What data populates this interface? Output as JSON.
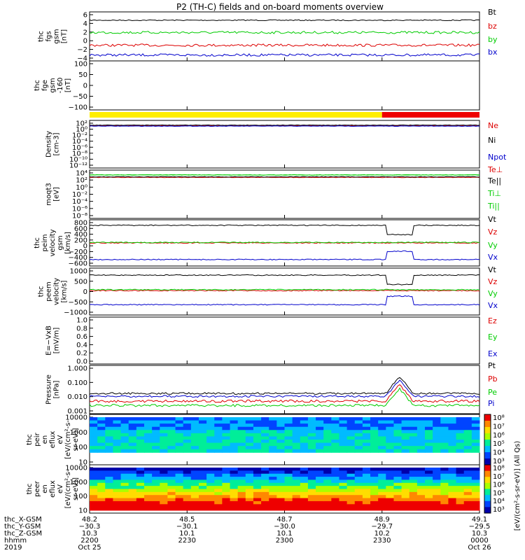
{
  "title": "P2 (TH-C) fields and on-board moments overview",
  "colors": {
    "black": "#000000",
    "red": "#dd0000",
    "green": "#00cc00",
    "blue": "#0000cc",
    "yellow": "#ffee00",
    "bar_red": "#ee0000"
  },
  "chart_data": [
    {
      "type": "line",
      "ylabel": [
        "thc",
        "fgs",
        "gsm",
        "[nT]"
      ],
      "yticks": [
        "6",
        "4",
        "2",
        "0",
        "−2",
        "−4"
      ],
      "series": [
        {
          "name": "Bt",
          "color": "#000000",
          "level": 3.6
        },
        {
          "name": "bz",
          "color": "#dd0000",
          "level": -0.3
        },
        {
          "name": "by",
          "color": "#00cc00",
          "level": 2.5
        },
        {
          "name": "bx",
          "color": "#0000cc",
          "level": -2.8
        }
      ]
    },
    {
      "type": "line",
      "ylabel": [
        "thc",
        "fge",
        "gsm",
        "-160",
        "[nT]"
      ],
      "yticks": [
        "100",
        "50",
        "0",
        "−50",
        "−100"
      ],
      "series": []
    },
    {
      "type": "bar",
      "name": "mode bar",
      "segments": [
        {
          "from": "2200",
          "to": "2330",
          "color": "#ffee00"
        },
        {
          "from": "2330",
          "to": "0000",
          "color": "#ee0000"
        }
      ]
    },
    {
      "type": "line",
      "ylabel": [
        "Density",
        "[cm-3]"
      ],
      "yticks": [
        "10²",
        "10⁰",
        "10⁻²",
        "10⁻⁴",
        "10⁻⁶",
        "10⁻⁸",
        "10⁻¹⁰",
        "10⁻¹²"
      ],
      "series": [
        {
          "name": "Ne",
          "color": "#dd0000"
        },
        {
          "name": "Ni",
          "color": "#000000"
        },
        {
          "name": "Npot",
          "color": "#0000cc"
        }
      ]
    },
    {
      "type": "line",
      "ylabel": [
        "moqt3",
        "[eV]"
      ],
      "yticks": [
        "10⁴",
        "10²",
        "10⁰",
        "10⁻²",
        "10⁻⁴",
        "10⁻⁶",
        "10⁻⁸"
      ],
      "series": [
        {
          "name": "Te⊥",
          "color": "#dd0000"
        },
        {
          "name": "Te||",
          "color": "#000000"
        },
        {
          "name": "Ti⊥",
          "color": "#00cc00"
        },
        {
          "name": "Ti||",
          "color": "#00cc00"
        }
      ]
    },
    {
      "type": "line",
      "ylabel": [
        "thc",
        "peim",
        "velocity",
        "gsm",
        "[km/s]"
      ],
      "yticks": [
        "800",
        "600",
        "400",
        "200",
        "0",
        "−200",
        "−400",
        "−600"
      ],
      "series": [
        {
          "name": "Vt",
          "color": "#000000"
        },
        {
          "name": "Vz",
          "color": "#dd0000"
        },
        {
          "name": "Vy",
          "color": "#00cc00"
        },
        {
          "name": "Vx",
          "color": "#0000cc"
        }
      ]
    },
    {
      "type": "line",
      "ylabel": [
        "thc",
        "peem",
        "velocity",
        "[km/s]"
      ],
      "yticks": [
        "1000",
        "500",
        "0",
        "−500",
        "−1000"
      ],
      "series": [
        {
          "name": "Vt",
          "color": "#000000"
        },
        {
          "name": "Vz",
          "color": "#dd0000"
        },
        {
          "name": "Vy",
          "color": "#00cc00"
        },
        {
          "name": "Vx",
          "color": "#0000cc"
        }
      ]
    },
    {
      "type": "line",
      "ylabel": [
        "E=−VxB",
        "[mV/m]"
      ],
      "yticks": [
        "1.0",
        "0.8",
        "0.6",
        "0.4",
        "0.2",
        "0.0"
      ],
      "series": [
        {
          "name": "Ez",
          "color": "#dd0000"
        },
        {
          "name": "Ey",
          "color": "#00cc00"
        },
        {
          "name": "Ex",
          "color": "#0000cc"
        }
      ]
    },
    {
      "type": "line",
      "ylabel": [
        "Pressure",
        "[nPa]"
      ],
      "yticks": [
        "1.000",
        "0.100",
        "0.010",
        "0.001"
      ],
      "series": [
        {
          "name": "Pt",
          "color": "#000000"
        },
        {
          "name": "Pb",
          "color": "#dd0000"
        },
        {
          "name": "Pe",
          "color": "#00cc00"
        },
        {
          "name": "Pi",
          "color": "#0000cc"
        }
      ]
    },
    {
      "type": "heatmap",
      "ylabel": [
        "thc",
        "peir",
        "en",
        "eflux",
        "eV",
        "[eV/(cm²-s-",
        "sr-eV)]"
      ],
      "yticks": [
        "10000",
        "1000",
        "100",
        "10"
      ],
      "colorbar": {
        "ticks": [
          "10⁸",
          "10⁷",
          "10⁶",
          "10⁵",
          "10⁴",
          "10³"
        ],
        "label": "[eV/(cm²-s-sr-eV)] (All Qs)"
      }
    },
    {
      "type": "heatmap",
      "ylabel": [
        "thc",
        "peer",
        "en",
        "eflux",
        "eV",
        "[eV/(cm²-s-",
        "sr-eV)]"
      ],
      "yticks": [
        "10000",
        "1000",
        "100",
        "10"
      ],
      "colorbar": {
        "ticks": [
          "10⁸",
          "10⁷",
          "10⁶",
          "10⁵",
          "10⁴",
          "10³"
        ]
      }
    }
  ],
  "xaxis": {
    "row_labels": [
      "thc_X-GSM",
      "thc_Y-GSM",
      "thc_Z-GSM",
      "hhmm",
      "2019"
    ],
    "columns": [
      {
        "x": "48.2",
        "y": "−30.3",
        "z": "10.3",
        "hhmm": "2200",
        "date": "Oct 25"
      },
      {
        "x": "48.5",
        "y": "−30.1",
        "z": "10.1",
        "hhmm": "2230",
        "date": ""
      },
      {
        "x": "48.7",
        "y": "−30.0",
        "z": "10.1",
        "hhmm": "2300",
        "date": ""
      },
      {
        "x": "48.9",
        "y": "−29.7",
        "z": "10.2",
        "hhmm": "2330",
        "date": ""
      },
      {
        "x": "49.1",
        "y": "−29.5",
        "z": "10.3",
        "hhmm": "0000",
        "date": "Oct 26"
      }
    ]
  }
}
